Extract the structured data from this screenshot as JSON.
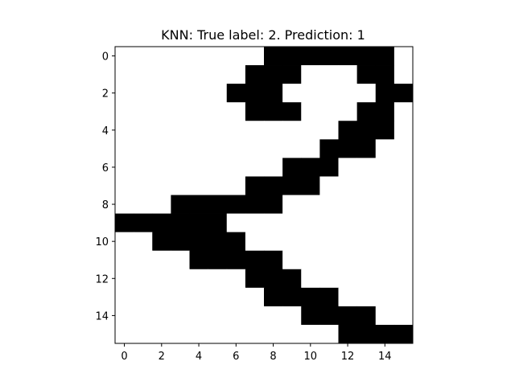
{
  "chart_data": {
    "type": "heatmap",
    "title": "KNN: True label: 2. Prediction: 1",
    "xlabel": "",
    "ylabel": "",
    "rows": 16,
    "cols": 16,
    "xlim": [
      -0.5,
      15.5
    ],
    "ylim": [
      15.5,
      -0.5
    ],
    "x_ticks": [
      0,
      2,
      4,
      6,
      8,
      10,
      12,
      14
    ],
    "y_ticks": [
      0,
      2,
      4,
      6,
      8,
      10,
      12,
      14
    ],
    "colormap": "gray_r",
    "grid": false,
    "colors": {
      "on": "#000000",
      "off": "#ffffff"
    },
    "pixels": [
      [
        0,
        0,
        0,
        0,
        0,
        0,
        0,
        0,
        1,
        1,
        1,
        1,
        1,
        1,
        1,
        0
      ],
      [
        0,
        0,
        0,
        0,
        0,
        0,
        0,
        1,
        1,
        1,
        0,
        0,
        0,
        1,
        1,
        0
      ],
      [
        0,
        0,
        0,
        0,
        0,
        0,
        1,
        1,
        1,
        0,
        0,
        0,
        0,
        0,
        1,
        1
      ],
      [
        0,
        0,
        0,
        0,
        0,
        0,
        0,
        1,
        1,
        1,
        0,
        0,
        0,
        1,
        1,
        0
      ],
      [
        0,
        0,
        0,
        0,
        0,
        0,
        0,
        0,
        0,
        0,
        0,
        0,
        1,
        1,
        1,
        0
      ],
      [
        0,
        0,
        0,
        0,
        0,
        0,
        0,
        0,
        0,
        0,
        0,
        1,
        1,
        1,
        0,
        0
      ],
      [
        0,
        0,
        0,
        0,
        0,
        0,
        0,
        0,
        0,
        1,
        1,
        1,
        0,
        0,
        0,
        0
      ],
      [
        0,
        0,
        0,
        0,
        0,
        0,
        0,
        1,
        1,
        1,
        1,
        0,
        0,
        0,
        0,
        0
      ],
      [
        0,
        0,
        0,
        1,
        1,
        1,
        1,
        1,
        1,
        0,
        0,
        0,
        0,
        0,
        0,
        0
      ],
      [
        1,
        1,
        1,
        1,
        1,
        1,
        0,
        0,
        0,
        0,
        0,
        0,
        0,
        0,
        0,
        0
      ],
      [
        0,
        0,
        1,
        1,
        1,
        1,
        1,
        0,
        0,
        0,
        0,
        0,
        0,
        0,
        0,
        0
      ],
      [
        0,
        0,
        0,
        0,
        1,
        1,
        1,
        1,
        1,
        0,
        0,
        0,
        0,
        0,
        0,
        0
      ],
      [
        0,
        0,
        0,
        0,
        0,
        0,
        0,
        1,
        1,
        1,
        0,
        0,
        0,
        0,
        0,
        0
      ],
      [
        0,
        0,
        0,
        0,
        0,
        0,
        0,
        0,
        1,
        1,
        1,
        1,
        0,
        0,
        0,
        0
      ],
      [
        0,
        0,
        0,
        0,
        0,
        0,
        0,
        0,
        0,
        0,
        1,
        1,
        1,
        1,
        0,
        0
      ],
      [
        0,
        0,
        0,
        0,
        0,
        0,
        0,
        0,
        0,
        0,
        0,
        0,
        1,
        1,
        1,
        1
      ]
    ]
  }
}
